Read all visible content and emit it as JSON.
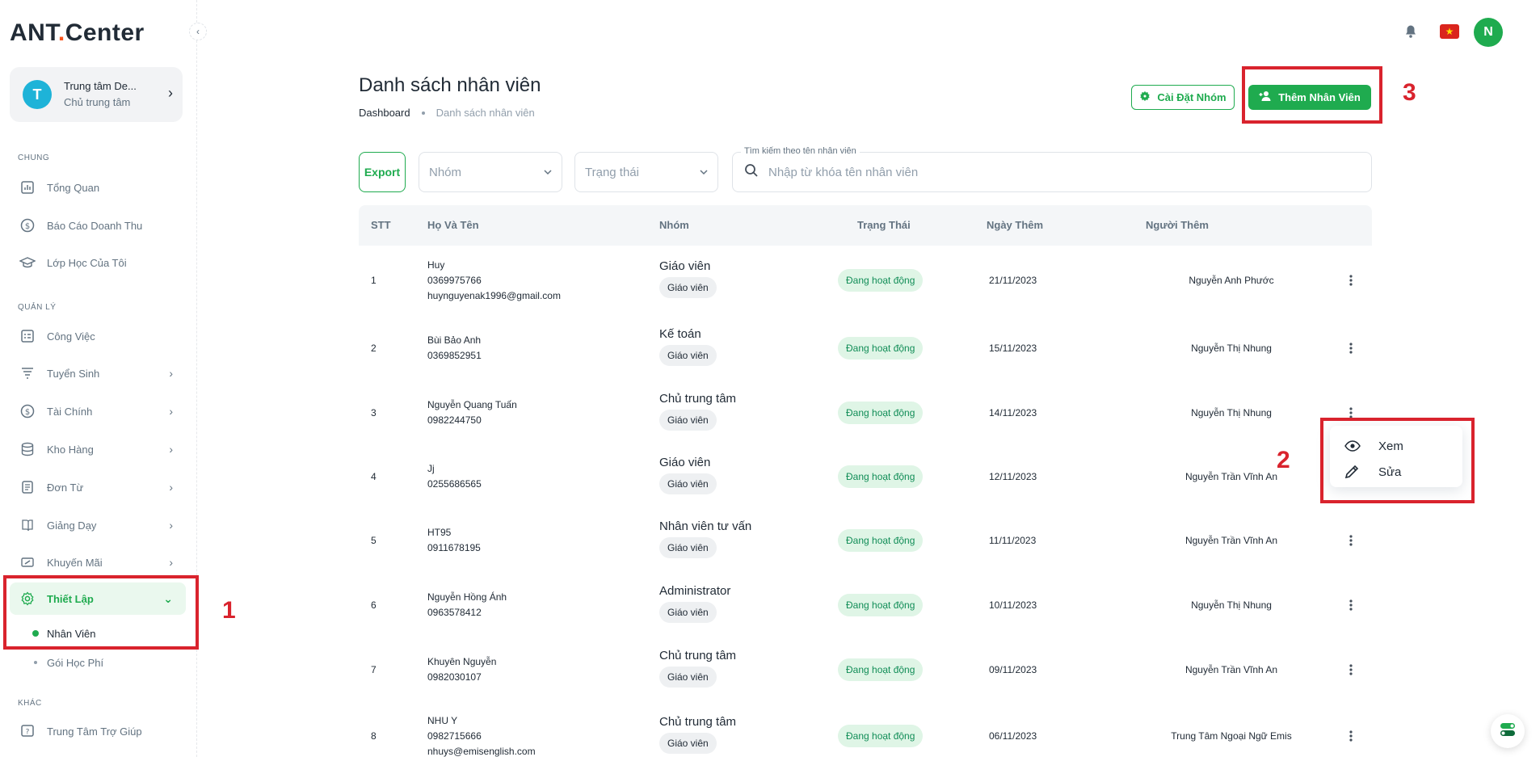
{
  "brand": {
    "name_prefix": "ANT",
    "name_suffix": "Center",
    "dot": "."
  },
  "account": {
    "initial": "T",
    "name": "Trung tâm De...",
    "role": "Chủ trung tâm"
  },
  "sidebar": {
    "section_general": "CHUNG",
    "section_manage": "QUẢN LÝ",
    "section_other": "KHÁC",
    "items": [
      {
        "label": "Tổng Quan",
        "icon": "chart-icon"
      },
      {
        "label": "Báo Cáo Doanh Thu",
        "icon": "dollar-circle-icon"
      },
      {
        "label": "Lớp Học Của Tôi",
        "icon": "graduation-cap-icon"
      },
      {
        "label": "Công Việc",
        "icon": "task-icon"
      },
      {
        "label": "Tuyển Sinh",
        "icon": "funnel-icon"
      },
      {
        "label": "Tài Chính",
        "icon": "dollar-circle-icon"
      },
      {
        "label": "Kho Hàng",
        "icon": "database-icon"
      },
      {
        "label": "Đơn Từ",
        "icon": "document-icon"
      },
      {
        "label": "Giảng Dạy",
        "icon": "book-icon"
      },
      {
        "label": "Khuyến Mãi",
        "icon": "ticket-icon"
      },
      {
        "label": "Thiết Lập",
        "icon": "gear-icon"
      },
      {
        "label": "Trung Tâm Trợ Giúp",
        "icon": "help-icon"
      }
    ],
    "sub_items": [
      {
        "label": "Nhân Viên"
      },
      {
        "label": "Gói Học Phí"
      }
    ]
  },
  "header": {
    "title": "Danh sách nhân viên",
    "breadcrumb": [
      "Dashboard",
      "Danh sách nhân viên"
    ],
    "setting_button": "Cài Đặt Nhóm",
    "add_button": "Thêm Nhân Viên",
    "user_initial": "N"
  },
  "filters": {
    "export": "Export",
    "group_placeholder": "Nhóm",
    "status_placeholder": "Trạng thái",
    "search_label": "Tìm kiếm theo tên nhân viên",
    "search_placeholder": "Nhập từ khóa tên nhân viên"
  },
  "table": {
    "columns": [
      "STT",
      "Họ Và Tên",
      "Nhóm",
      "Trạng Thái",
      "Ngày Thêm",
      "Người Thêm"
    ],
    "rows": [
      {
        "stt": "1",
        "name": "Huy",
        "phone": "0369975766",
        "email": "huynguyenak1996@gmail.com",
        "group": "Giáo viên",
        "chip": "Giáo viên",
        "status": "Đang hoạt động",
        "date": "21/11/2023",
        "creator": "Nguyễn Anh Phước"
      },
      {
        "stt": "2",
        "name": "Bùi Bảo Anh",
        "phone": "0369852951",
        "email": "",
        "group": "Kế toán",
        "chip": "Giáo viên",
        "status": "Đang hoạt động",
        "date": "15/11/2023",
        "creator": "Nguyễn Thị Nhung"
      },
      {
        "stt": "3",
        "name": "Nguyễn Quang Tuấn",
        "phone": "0982244750",
        "email": "",
        "group": "Chủ trung tâm",
        "chip": "Giáo viên",
        "status": "Đang hoạt động",
        "date": "14/11/2023",
        "creator": "Nguyễn Thị Nhung"
      },
      {
        "stt": "4",
        "name": "Jj",
        "phone": "0255686565",
        "email": "",
        "group": "Giáo viên",
        "chip": "Giáo viên",
        "status": "Đang hoạt động",
        "date": "12/11/2023",
        "creator": "Nguyễn Trần Vĩnh An"
      },
      {
        "stt": "5",
        "name": "HT95",
        "phone": "0911678195",
        "email": "",
        "group": "Nhân viên tư vấn",
        "chip": "Giáo viên",
        "status": "Đang hoạt động",
        "date": "11/11/2023",
        "creator": "Nguyễn Trần Vĩnh An"
      },
      {
        "stt": "6",
        "name": "Nguyễn Hồng Ánh",
        "phone": "0963578412",
        "email": "",
        "group": "Administrator",
        "chip": "Giáo viên",
        "status": "Đang hoạt động",
        "date": "10/11/2023",
        "creator": "Nguyễn Thị Nhung"
      },
      {
        "stt": "7",
        "name": "Khuyên Nguyễn",
        "phone": "0982030107",
        "email": "",
        "group": "Chủ trung tâm",
        "chip": "Giáo viên",
        "status": "Đang hoạt động",
        "date": "09/11/2023",
        "creator": "Nguyễn Trần Vĩnh An"
      },
      {
        "stt": "8",
        "name": "NHU Y",
        "phone": "0982715666",
        "email": "nhuys@emisenglish.com",
        "group": "Chủ trung tâm",
        "chip": "Giáo viên",
        "status": "Đang hoạt động",
        "date": "06/11/2023",
        "creator": "Trung Tâm Ngoại Ngữ Emis"
      }
    ]
  },
  "context_menu": {
    "view": "Xem",
    "edit": "Sửa"
  },
  "annotations": {
    "one": "1",
    "two": "2",
    "three": "3"
  },
  "colors": {
    "accent": "#1fab4f",
    "annotation": "#d9232d",
    "status_bg": "#dff5e6"
  }
}
